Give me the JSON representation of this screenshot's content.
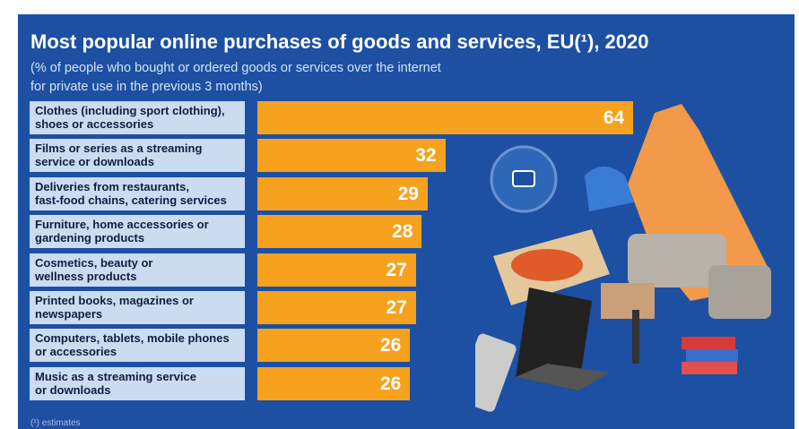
{
  "chart_data": {
    "type": "bar",
    "orientation": "horizontal",
    "title": "Most popular online purchases of goods and services, EU(¹), 2020",
    "subtitle": "(% of people who bought or ordered goods or services over the internet\nfor private use in the previous 3 months)",
    "categories": [
      "Clothes (including sport clothing),\nshoes or accessories",
      "Films or series as a streaming\nservice or downloads",
      "Deliveries from restaurants,\nfast-food chains, catering services",
      "Furniture, home accessories or\ngardening products",
      "Cosmetics, beauty or\nwellness products",
      "Printed books, magazines or\nnewspapers",
      "Computers, tablets, mobile phones\nor accessories",
      "Music as a streaming service\nor downloads"
    ],
    "values": [
      64,
      32,
      29,
      28,
      27,
      27,
      26,
      26
    ],
    "color": "#f6a21e",
    "footnote": "(¹) estimates"
  }
}
